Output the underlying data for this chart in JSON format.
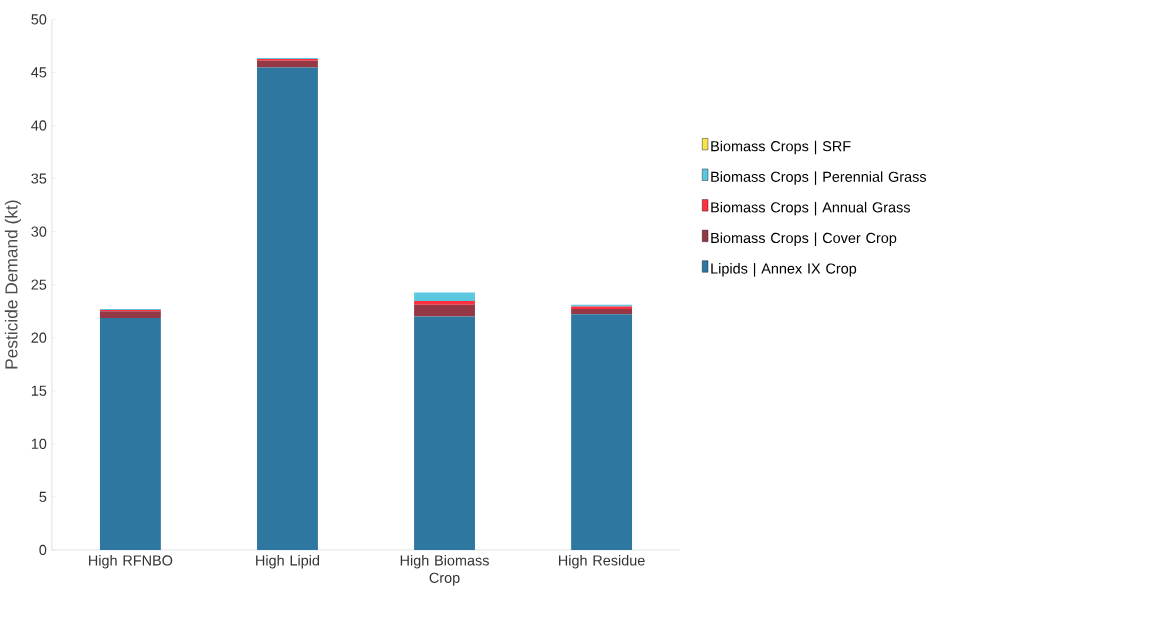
{
  "chart_data": {
    "type": "bar",
    "stacked": true,
    "ylabel": "Pesticide Demand (kt)",
    "categories": [
      "High RFNBO",
      "High Lipid",
      "High Biomass Crop",
      "High Residue"
    ],
    "series": [
      {
        "name": "Lipids | Annex IX Crop",
        "color": "#2e77a0",
        "values": [
          21.85,
          45.45,
          22.0,
          22.2
        ]
      },
      {
        "name": "Biomass Crops | Cover Crop",
        "color": "#953846",
        "values": [
          0.65,
          0.65,
          1.1,
          0.5
        ]
      },
      {
        "name": "Biomass Crops | Annual Grass",
        "color": "#ff3040",
        "values": [
          0.1,
          0.15,
          0.35,
          0.25
        ]
      },
      {
        "name": "Biomass Crops | Perennial Grass",
        "color": "#5bc8e0",
        "values": [
          0.1,
          0.1,
          0.8,
          0.15
        ]
      },
      {
        "name": "Biomass Crops | SRF",
        "color": "#f5e050",
        "values": [
          0,
          0,
          0,
          0
        ]
      }
    ],
    "ylim": [
      0,
      50
    ],
    "yticks": [
      0,
      5,
      10,
      15,
      20,
      25,
      30,
      35,
      40,
      45,
      50
    ],
    "grid": false,
    "legend": "right"
  }
}
